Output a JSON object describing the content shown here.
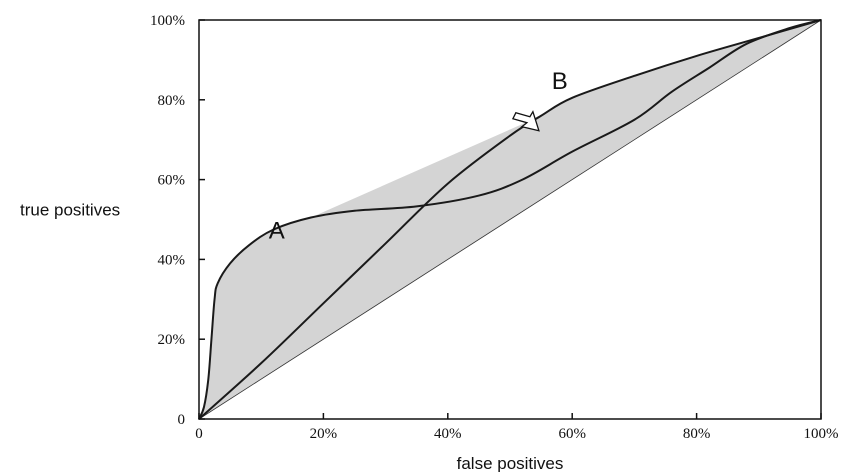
{
  "chart_data": {
    "type": "line",
    "title": "",
    "xlabel": "false positives",
    "ylabel": "true positives",
    "xlim": [
      0,
      100
    ],
    "ylim": [
      0,
      100
    ],
    "x_ticks": [
      {
        "value": 0,
        "label": "0"
      },
      {
        "value": 20,
        "label": "20%"
      },
      {
        "value": 40,
        "label": "40%"
      },
      {
        "value": 60,
        "label": "60%"
      },
      {
        "value": 80,
        "label": "80%"
      },
      {
        "value": 100,
        "label": "100%"
      }
    ],
    "y_ticks": [
      {
        "value": 0,
        "label": "0"
      },
      {
        "value": 20,
        "label": "20%"
      },
      {
        "value": 40,
        "label": "40%"
      },
      {
        "value": 60,
        "label": "60%"
      },
      {
        "value": 80,
        "label": "80%"
      },
      {
        "value": 100,
        "label": "100%"
      }
    ],
    "grid": false,
    "series": [
      {
        "name": "A",
        "x": [
          0,
          0.8,
          1.5,
          2.0,
          2.5,
          3,
          5,
          8,
          12,
          18,
          25,
          35,
          45,
          52,
          60,
          70,
          76,
          82,
          88,
          95,
          100
        ],
        "y": [
          0,
          3,
          10,
          20,
          30,
          34,
          39,
          43.5,
          47.5,
          50.5,
          52.2,
          53.3,
          56,
          60,
          67,
          75,
          82,
          88,
          94,
          98,
          100
        ]
      },
      {
        "name": "B",
        "x": [
          0,
          10,
          20,
          30,
          40,
          50,
          55,
          60,
          70,
          80,
          90,
          100
        ],
        "y": [
          0,
          14,
          29,
          44,
          59,
          71,
          76,
          80.5,
          86,
          91,
          95.5,
          100
        ]
      },
      {
        "x": [
          0,
          100
        ],
        "y": [
          0,
          100
        ]
      }
    ],
    "convex_hull": {
      "x": [
        0,
        0.8,
        1.5,
        2.0,
        2.5,
        3,
        5,
        8,
        12,
        18,
        55,
        60,
        70,
        80,
        90,
        100
      ],
      "y": [
        0,
        3,
        10,
        20,
        30,
        34,
        39,
        43.5,
        47.5,
        50.5,
        76,
        80.5,
        86,
        91,
        95.5,
        100
      ],
      "fill": "#d4d4d4"
    },
    "annotations": [
      {
        "text": "A",
        "x": 12.5,
        "y": 47.5
      },
      {
        "text": "B",
        "x": 58,
        "y": 85
      }
    ],
    "arrow": {
      "x": 54,
      "y": 73
    }
  }
}
